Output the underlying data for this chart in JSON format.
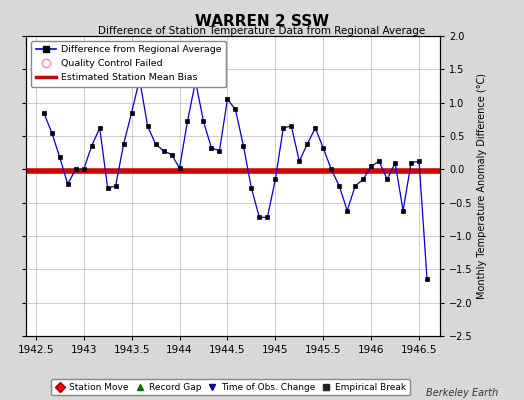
{
  "title": "WARREN 2 SSW",
  "subtitle": "Difference of Station Temperature Data from Regional Average",
  "ylabel": "Monthly Temperature Anomaly Difference (°C)",
  "xlim": [
    1942.4,
    1946.72
  ],
  "ylim": [
    -2.5,
    2.0
  ],
  "yticks": [
    -2.5,
    -2.0,
    -1.5,
    -1.0,
    -0.5,
    0.0,
    0.5,
    1.0,
    1.5,
    2.0
  ],
  "xticks": [
    1942.5,
    1943.0,
    1943.5,
    1944.0,
    1944.5,
    1945.0,
    1945.5,
    1946.0,
    1946.5
  ],
  "xtick_labels": [
    "1942.5",
    "1943",
    "1943.5",
    "1944",
    "1944.5",
    "1945",
    "1945.5",
    "1946",
    "1946.5"
  ],
  "bias_y": -0.02,
  "background_color": "#d8d8d8",
  "plot_bg_color": "#ffffff",
  "line_color": "#0000dd",
  "marker_color": "#000000",
  "bias_color": "#cc0000",
  "x_data": [
    1942.583,
    1942.667,
    1942.75,
    1942.833,
    1942.917,
    1943.0,
    1943.083,
    1943.167,
    1943.25,
    1943.333,
    1943.417,
    1943.5,
    1943.583,
    1943.667,
    1943.75,
    1943.833,
    1943.917,
    1944.0,
    1944.083,
    1944.167,
    1944.25,
    1944.333,
    1944.417,
    1944.5,
    1944.583,
    1944.667,
    1944.75,
    1944.833,
    1944.917,
    1945.0,
    1945.083,
    1945.167,
    1945.25,
    1945.333,
    1945.417,
    1945.5,
    1945.583,
    1945.667,
    1945.75,
    1945.833,
    1945.917,
    1946.0,
    1946.083,
    1946.167,
    1946.25,
    1946.333,
    1946.417,
    1946.5,
    1946.583
  ],
  "y_data": [
    0.85,
    0.55,
    0.18,
    -0.22,
    0.0,
    0.0,
    0.35,
    0.62,
    -0.28,
    -0.25,
    0.38,
    0.85,
    1.35,
    0.65,
    0.38,
    0.28,
    0.22,
    0.02,
    0.72,
    1.32,
    0.72,
    0.32,
    0.28,
    1.05,
    0.9,
    0.35,
    -0.28,
    -0.72,
    -0.72,
    -0.15,
    0.62,
    0.65,
    0.12,
    0.38,
    0.62,
    0.32,
    0.0,
    -0.25,
    -0.62,
    -0.25,
    -0.15,
    0.05,
    0.12,
    -0.15,
    0.1,
    -0.62,
    0.1,
    0.12,
    -1.65
  ],
  "watermark": "Berkeley Earth"
}
